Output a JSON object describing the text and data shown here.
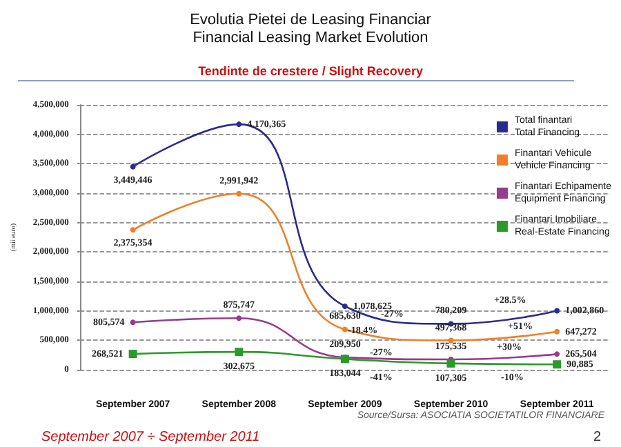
{
  "chart_data": {
    "type": "line",
    "title": "Evolutia Pietei de Leasing Financiar\nFinancial Leasing Market Evolution",
    "subtitle": "Tendinte de crestere / Slight Recovery",
    "ylabel": "(mii euro)",
    "categories": [
      "September 2007",
      "September 2008",
      "September 2009",
      "September 2010",
      "September 2011"
    ],
    "series": [
      {
        "name": "Total finantari\nTotal Financing",
        "color": "#2b2b8f",
        "marker": "circle",
        "values": [
          3449446,
          4170365,
          1078625,
          780209,
          1002860
        ],
        "value_labels": [
          "3,449,446",
          "4,170,365",
          "1,078,625",
          "780,209",
          "1,002,860"
        ]
      },
      {
        "name": "Finantari Vehicule\nVehicle Financing",
        "color": "#f07f2a",
        "marker": "circle",
        "values": [
          2375354,
          2991942,
          685630,
          497368,
          647272
        ],
        "value_labels": [
          "2,375,354",
          "2,991,942",
          "685,630",
          "497,368",
          "647,272"
        ]
      },
      {
        "name": "Finantari Echipamente\nEquipment Financing",
        "color": "#993b8a",
        "marker": "circle",
        "values": [
          805574,
          875747,
          209950,
          175535,
          265504
        ],
        "value_labels": [
          "805,574",
          "875,747",
          "209,950",
          "175,535",
          "265,504"
        ]
      },
      {
        "name": "Finantari Imobiliare\nReal-Estate Financing",
        "color": "#2a9a2a",
        "marker": "square",
        "values": [
          268521,
          302675,
          183044,
          107305,
          90885
        ],
        "value_labels": [
          "268,521",
          "302,675",
          "183,044",
          "107,305",
          "90,885"
        ]
      }
    ],
    "ylim": [
      0,
      4500000
    ],
    "yticks": [
      0,
      {
        "value": 500000,
        "label": "500,000"
      },
      {
        "value": 1000000,
        "label": "1,000,000"
      },
      {
        "value": 1500000,
        "label": "1,500,000"
      },
      {
        "value": 2000000,
        "label": "2,000,000"
      },
      {
        "value": 2500000,
        "label": "2,500,000"
      },
      {
        "value": 3000000,
        "label": "3,000,000"
      },
      {
        "value": 3500000,
        "label": "3,500,000"
      },
      {
        "value": 4000000,
        "label": "4,000,000"
      },
      {
        "value": 4500000,
        "label": "4,500,000"
      }
    ],
    "grid": "y",
    "legend": "top right",
    "line_style": "solid",
    "annotations": [
      "-27%",
      "-18.4%",
      "+28.5%",
      "+51%",
      "-27%",
      "-41%",
      "+30%",
      "-10%",
      "Source/Sursa: ASOCIATIA SOCIETATILOR FINANCIARE",
      "September 2007 ÷ September 2011",
      "2"
    ]
  }
}
